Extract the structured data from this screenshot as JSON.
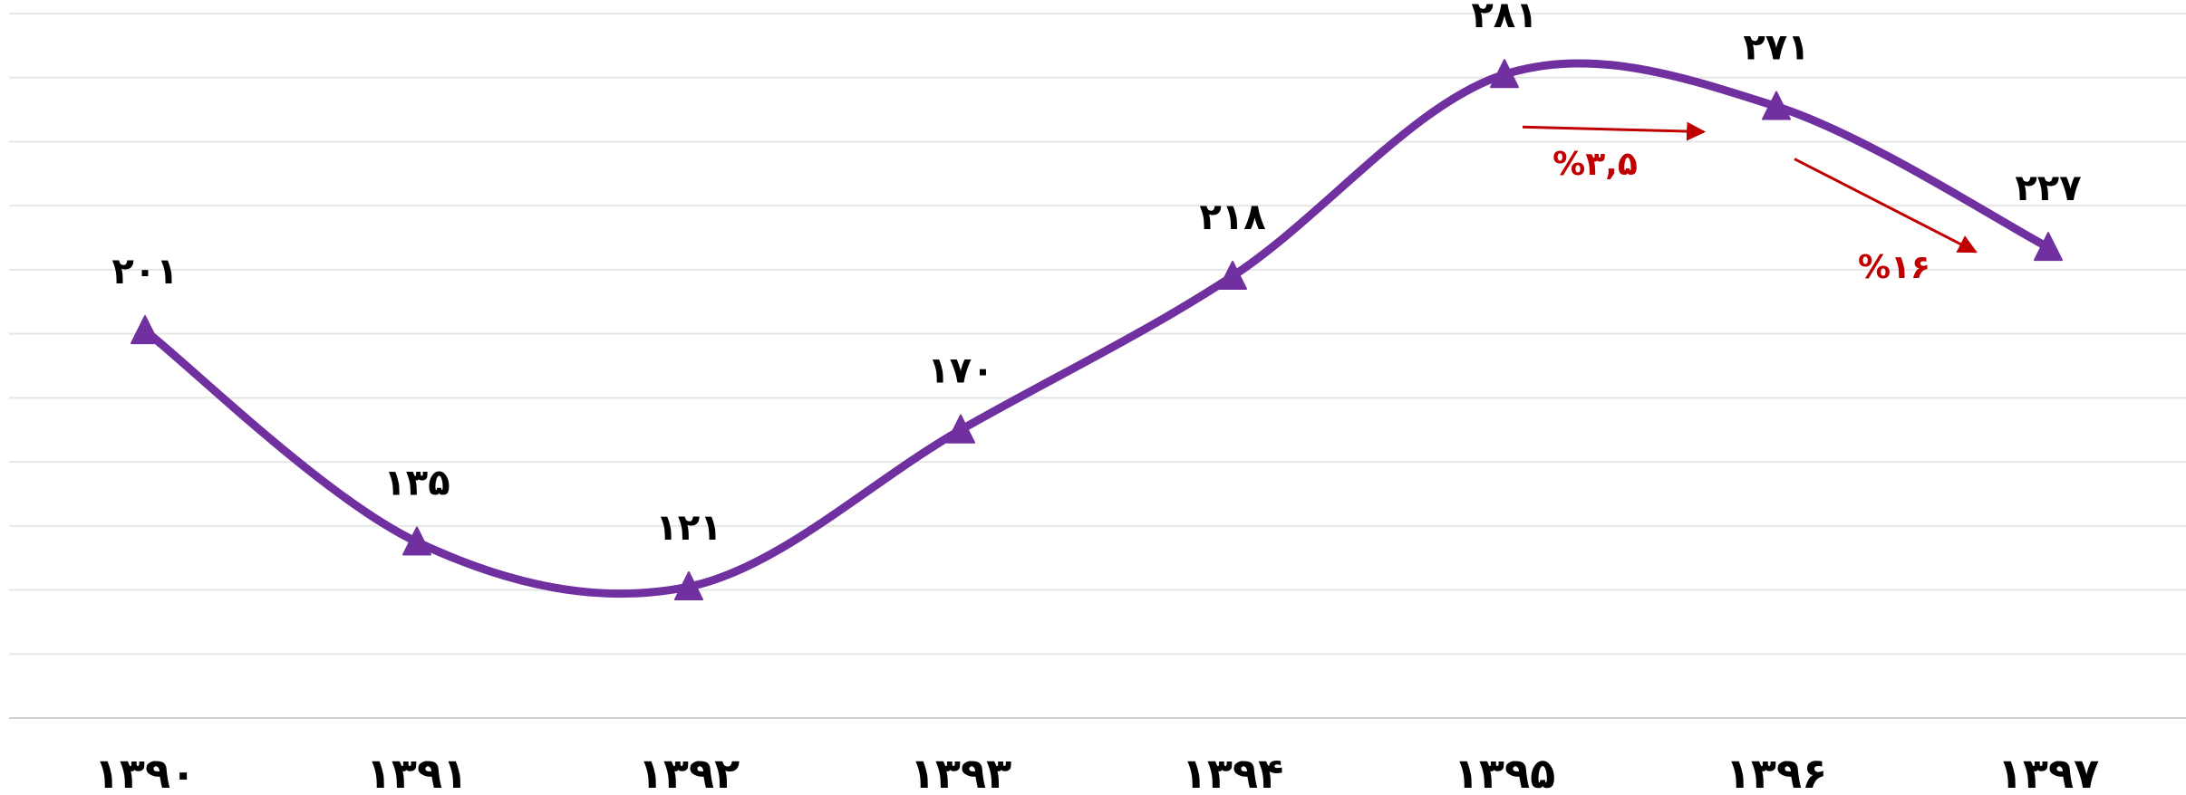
{
  "chart_data": {
    "type": "line",
    "title": "",
    "xlabel": "",
    "ylabel": "",
    "categories": [
      "۱۳۹۰",
      "۱۳۹۱",
      "۱۳۹۲",
      "۱۳۹۳",
      "۱۳۹۴",
      "۱۳۹۵",
      "۱۳۹۶",
      "۱۳۹۷"
    ],
    "series": [
      {
        "values": [
          201,
          135,
          121,
          170,
          218,
          281,
          271,
          227
        ],
        "data_labels": [
          "۲۰۱",
          "۱۳۵",
          "۱۲۱",
          "۱۷۰",
          "۲۱۸",
          "۲۸۱",
          "۲۷۱",
          "۲۲۷"
        ],
        "color": "#7030a0",
        "marker": "triangle",
        "smooth": true
      }
    ],
    "ylim": [
      80,
      300
    ],
    "grid": true,
    "annotations": [
      {
        "text": "%۳,۵",
        "from": "۱۳۹۵",
        "to": "۱۳۹۶",
        "color": "#c00000"
      },
      {
        "text": "%۱۶",
        "from": "۱۳۹۶",
        "to": "۱۳۹۷",
        "color": "#c00000"
      }
    ]
  }
}
